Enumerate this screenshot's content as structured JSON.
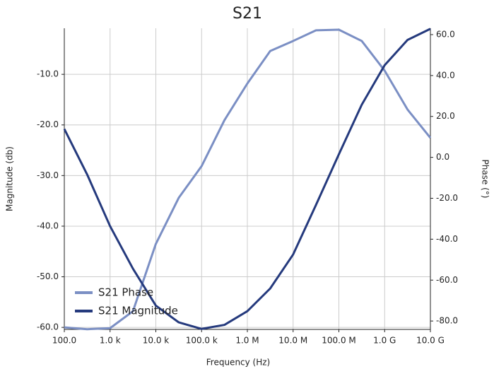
{
  "chart_data": {
    "type": "line",
    "title": "S21",
    "xlabel": "Frequency (Hz)",
    "ylabel": "Magnitude (db)",
    "y2label": "Phase (°)",
    "xscale": "log",
    "grid": true,
    "legend": "lower left",
    "x": [
      100,
      316,
      1000,
      3162,
      10000,
      31623,
      100000,
      316228,
      1000000,
      3162278,
      10000000,
      31622777,
      100000000,
      316227766,
      1000000000,
      3162277660,
      10000000000
    ],
    "series": [
      {
        "name": "S21 Phase",
        "color": "#7b8fc4",
        "axis": "y2",
        "values": [
          -83.1,
          -84,
          -83.5,
          -75.2,
          -42.3,
          -19.8,
          -4.3,
          18.2,
          36.1,
          52.0,
          56.9,
          62.1,
          62.4,
          56.9,
          42.4,
          23.4,
          9.5
        ]
      },
      {
        "name": "S21 Magnitude",
        "color": "#253a7d",
        "values": [
          -20.8,
          -29.8,
          -40,
          -48.4,
          -55.7,
          -59,
          -60.3,
          -59.5,
          -56.8,
          -52.3,
          -45.6,
          -35.8,
          -25.8,
          -16.0,
          -8.2,
          -3.2,
          -1.0
        ]
      }
    ],
    "xlim": [
      100,
      10000000000
    ],
    "xticks": [
      {
        "value": 100,
        "label": "100.0"
      },
      {
        "value": 1000,
        "label": "1.0 k"
      },
      {
        "value": 10000,
        "label": "10.0 k"
      },
      {
        "value": 100000,
        "label": "100.0 k"
      },
      {
        "value": 1000000,
        "label": "1.0 M"
      },
      {
        "value": 10000000,
        "label": "10.0 M"
      },
      {
        "value": 100000000,
        "label": "100.0 M"
      },
      {
        "value": 1000000000,
        "label": "1.0 G"
      },
      {
        "value": 10000000000,
        "label": "10.0 G"
      }
    ],
    "ylim": [
      -60.4,
      -0.9
    ],
    "yticks": [
      {
        "value": -60,
        "label": "-60.0"
      },
      {
        "value": -50,
        "label": "-50.0"
      },
      {
        "value": -40,
        "label": "-40.0"
      },
      {
        "value": -30,
        "label": "-30.0"
      },
      {
        "value": -20,
        "label": "-20.0"
      },
      {
        "value": -10,
        "label": "-10.0"
      }
    ],
    "y2lim": [
      -84.1,
      63.1
    ],
    "y2ticks": [
      {
        "value": -80,
        "label": "-80.0"
      },
      {
        "value": -60,
        "label": "-60.0"
      },
      {
        "value": -40,
        "label": "-40.0"
      },
      {
        "value": -20,
        "label": "-20.0"
      },
      {
        "value": 0,
        "label": "0.0"
      },
      {
        "value": 20,
        "label": "20.0"
      },
      {
        "value": 40,
        "label": "40.0"
      },
      {
        "value": 60,
        "label": "60.0"
      }
    ]
  }
}
